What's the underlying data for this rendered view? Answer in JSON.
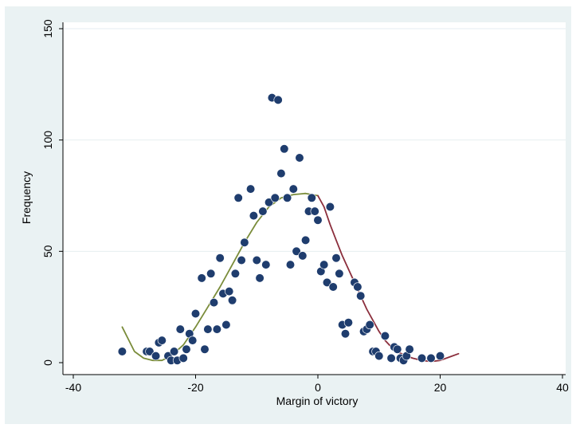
{
  "chart_data": {
    "type": "scatter",
    "title": "",
    "xlabel": "Margin of victory",
    "ylabel": "Frequency",
    "xlim": [
      -40,
      40
    ],
    "ylim": [
      0,
      150
    ],
    "xticks": [
      -40,
      -20,
      0,
      20,
      40
    ],
    "yticks": [
      0,
      50,
      100,
      150
    ],
    "grid": "horizontal",
    "colors": {
      "background": "#eaf2f3",
      "plot_area": "#ffffff",
      "points": "#1f3d6e",
      "left_fit": "#7a8c3a",
      "right_fit": "#8b2e3c",
      "grid": "#e6eef0"
    },
    "series": [
      {
        "kind": "points",
        "points": [
          [
            -32,
            5
          ],
          [
            -28,
            5
          ],
          [
            -27.5,
            5
          ],
          [
            -26.5,
            3
          ],
          [
            -26,
            9
          ],
          [
            -25.5,
            10
          ],
          [
            -24.5,
            3
          ],
          [
            -24,
            1
          ],
          [
            -23.5,
            5
          ],
          [
            -23,
            1
          ],
          [
            -22.5,
            15
          ],
          [
            -22,
            2
          ],
          [
            -21.5,
            6
          ],
          [
            -21,
            13
          ],
          [
            -20.5,
            10
          ],
          [
            -20,
            22
          ],
          [
            -19,
            38
          ],
          [
            -18.5,
            6
          ],
          [
            -18,
            15
          ],
          [
            -17.5,
            40
          ],
          [
            -17,
            27
          ],
          [
            -16.5,
            15
          ],
          [
            -16,
            47
          ],
          [
            -15.5,
            31
          ],
          [
            -15,
            17
          ],
          [
            -14.5,
            32
          ],
          [
            -14,
            28
          ],
          [
            -13.5,
            40
          ],
          [
            -13,
            74
          ],
          [
            -12.5,
            46
          ],
          [
            -12,
            54
          ],
          [
            -11,
            78
          ],
          [
            -10.5,
            66
          ],
          [
            -10,
            46
          ],
          [
            -9.5,
            38
          ],
          [
            -9,
            68
          ],
          [
            -8.5,
            44
          ],
          [
            -8,
            72
          ],
          [
            -7.5,
            119
          ],
          [
            -7,
            74
          ],
          [
            -6.5,
            118
          ],
          [
            -6,
            85
          ],
          [
            -5.5,
            96
          ],
          [
            -5,
            74
          ],
          [
            -4.5,
            44
          ],
          [
            -4,
            78
          ],
          [
            -3.5,
            50
          ],
          [
            -3,
            92
          ],
          [
            -2.5,
            48
          ],
          [
            -2,
            55
          ],
          [
            -1.5,
            68
          ],
          [
            -1,
            74
          ],
          [
            -0.5,
            68
          ],
          [
            0,
            64
          ],
          [
            0.5,
            41
          ],
          [
            1,
            44
          ],
          [
            1.5,
            36
          ],
          [
            2,
            70
          ],
          [
            2.5,
            34
          ],
          [
            3,
            47
          ],
          [
            3.5,
            40
          ],
          [
            4,
            17
          ],
          [
            4.5,
            13
          ],
          [
            5,
            18
          ],
          [
            6,
            36
          ],
          [
            6.5,
            34
          ],
          [
            7,
            30
          ],
          [
            7.5,
            14
          ],
          [
            8,
            15
          ],
          [
            8.5,
            17
          ],
          [
            9,
            5
          ],
          [
            9.5,
            5
          ],
          [
            10,
            3
          ],
          [
            11,
            12
          ],
          [
            12,
            2
          ],
          [
            12.5,
            7
          ],
          [
            13,
            6
          ],
          [
            13.5,
            2
          ],
          [
            14,
            1
          ],
          [
            14.5,
            3
          ],
          [
            15,
            6
          ],
          [
            17,
            2
          ],
          [
            18.5,
            2
          ],
          [
            20,
            3
          ]
        ]
      },
      {
        "kind": "line",
        "segment": "left-fit",
        "points": [
          [
            -32,
            16
          ],
          [
            -30,
            5
          ],
          [
            -28.5,
            2
          ],
          [
            -27,
            1
          ],
          [
            -25.5,
            1
          ],
          [
            -24,
            3
          ],
          [
            -22,
            8
          ],
          [
            -20,
            16
          ],
          [
            -18,
            25
          ],
          [
            -16,
            34
          ],
          [
            -14,
            44
          ],
          [
            -12,
            54
          ],
          [
            -10,
            63
          ],
          [
            -8,
            70
          ],
          [
            -6,
            74
          ],
          [
            -4,
            75.5
          ],
          [
            -2,
            76
          ],
          [
            0,
            75
          ]
        ]
      },
      {
        "kind": "line",
        "segment": "right-fit",
        "points": [
          [
            0,
            75
          ],
          [
            1,
            70
          ],
          [
            2,
            62
          ],
          [
            3,
            55
          ],
          [
            4,
            48
          ],
          [
            5,
            42
          ],
          [
            6,
            36
          ],
          [
            7,
            30
          ],
          [
            8,
            24
          ],
          [
            9,
            19
          ],
          [
            10,
            14
          ],
          [
            11,
            10
          ],
          [
            12,
            7
          ],
          [
            13,
            5
          ],
          [
            14,
            3.5
          ],
          [
            15.5,
            2
          ],
          [
            17,
            1
          ],
          [
            18.5,
            0.5
          ],
          [
            20,
            1
          ],
          [
            21.5,
            2.5
          ],
          [
            23,
            4
          ]
        ]
      }
    ]
  }
}
